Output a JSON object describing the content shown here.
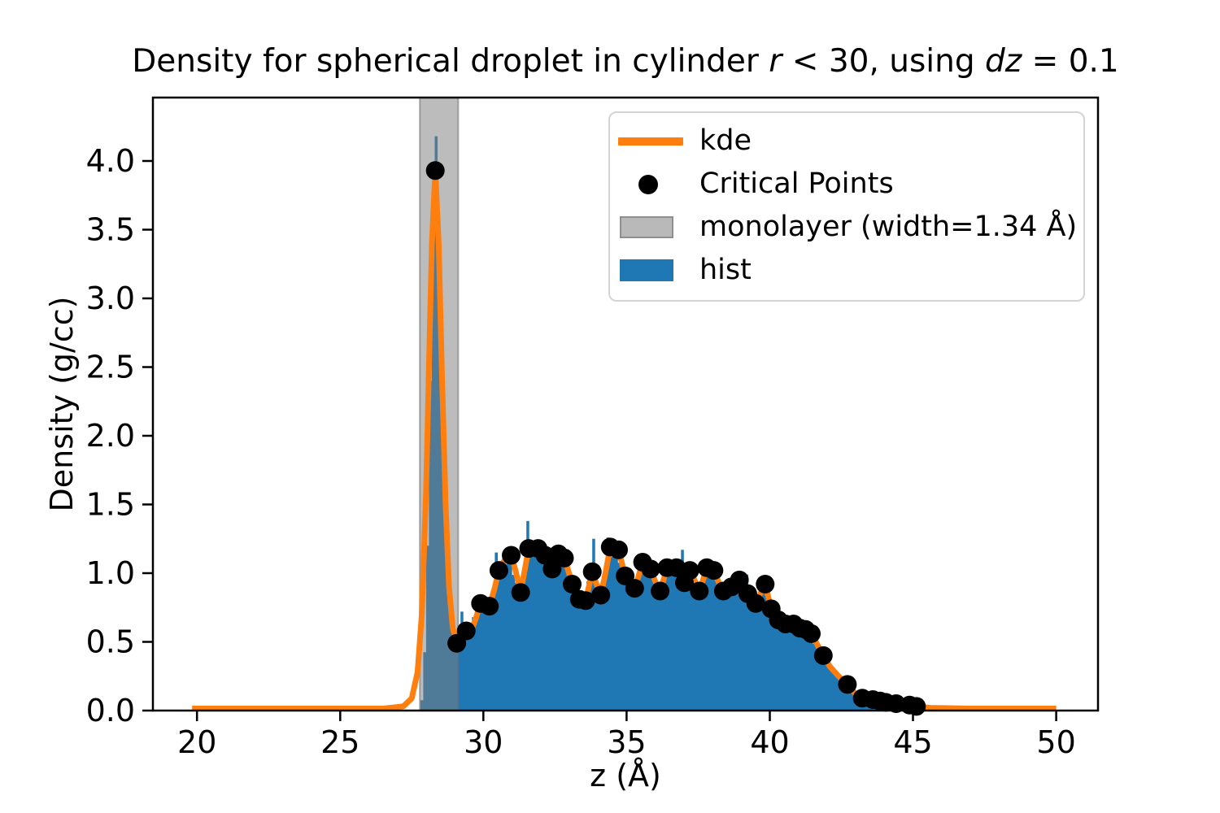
{
  "figure": {
    "title_segments": [
      {
        "text": "Density for spherical droplet in cylinder ",
        "italic": false
      },
      {
        "text": "r",
        "italic": true
      },
      {
        "text": " < 30, using ",
        "italic": false
      },
      {
        "text": "dz",
        "italic": true
      },
      {
        "text": " = 0.1",
        "italic": false
      }
    ]
  },
  "chart_data": {
    "type": "composite",
    "title": "Density for spherical droplet in cylinder r < 30, using dz = 0.1",
    "xlabel": "z (Å)",
    "ylabel": "Density (g/cc)",
    "xlim": [
      18.46,
      51.46
    ],
    "ylim": [
      0,
      4.4615
    ],
    "grid": false,
    "x_ticks": [
      20,
      25,
      30,
      35,
      40,
      45,
      50
    ],
    "x_tick_labels": [
      "20",
      "25",
      "30",
      "35",
      "40",
      "45",
      "50"
    ],
    "y_ticks": [
      0.0,
      0.5,
      1.0,
      1.5,
      2.0,
      2.5,
      3.0,
      3.5,
      4.0
    ],
    "y_tick_labels": [
      "0.0",
      "0.5",
      "1.0",
      "1.5",
      "2.0",
      "2.5",
      "3.0",
      "3.5",
      "4.0"
    ],
    "legend": {
      "position": "upper right",
      "items": [
        {
          "id": "kde",
          "label": "kde",
          "swatch": "line",
          "color": "#ff7f0e"
        },
        {
          "id": "critical-points",
          "label": "Critical Points",
          "swatch": "marker",
          "color": "#000000"
        },
        {
          "id": "monolayer",
          "label": "monolayer (width=1.34 Å)",
          "swatch": "patch",
          "color": "#b9b9b9",
          "edge_color": "#8f8f8f"
        },
        {
          "id": "hist",
          "label": "hist",
          "swatch": "patch",
          "color": "#1f77b4",
          "edge_color": "#1f77b4"
        }
      ]
    },
    "series": {
      "monolayer": {
        "type": "vspan",
        "x_range": [
          27.78,
          29.12
        ],
        "width_angstrom": 1.34,
        "color": "#7f7f7f",
        "alpha": 0.52,
        "edge_color": "#6e6e6e"
      },
      "kde": {
        "type": "line",
        "color": "#ff7f0e",
        "line_width": 7,
        "points": [
          [
            19.83,
            0.015
          ],
          [
            26.5,
            0.015
          ],
          [
            27.2,
            0.03
          ],
          [
            27.5,
            0.09
          ],
          [
            27.7,
            0.28
          ],
          [
            27.85,
            0.7
          ],
          [
            28.0,
            1.6
          ],
          [
            28.1,
            2.5
          ],
          [
            28.2,
            3.4
          ],
          [
            28.32,
            3.93
          ],
          [
            28.44,
            3.4
          ],
          [
            28.56,
            2.4
          ],
          [
            28.68,
            1.5
          ],
          [
            28.8,
            0.9
          ],
          [
            28.93,
            0.6
          ],
          [
            29.07,
            0.49
          ],
          [
            29.25,
            0.55
          ],
          [
            29.4,
            0.58
          ],
          [
            29.55,
            0.57
          ],
          [
            29.72,
            0.66
          ],
          [
            29.9,
            0.78
          ],
          [
            30.06,
            0.77
          ],
          [
            30.21,
            0.76
          ],
          [
            30.38,
            0.88
          ],
          [
            30.54,
            1.02
          ],
          [
            30.75,
            1.1
          ],
          [
            30.97,
            1.13
          ],
          [
            31.12,
            1.02
          ],
          [
            31.3,
            0.86
          ],
          [
            31.44,
            1.02
          ],
          [
            31.58,
            1.18
          ],
          [
            31.75,
            1.19
          ],
          [
            31.91,
            1.18
          ],
          [
            32.03,
            1.16
          ],
          [
            32.15,
            1.13
          ],
          [
            32.28,
            1.07
          ],
          [
            32.4,
            1.03
          ],
          [
            32.51,
            1.09
          ],
          [
            32.62,
            1.14
          ],
          [
            32.73,
            1.13
          ],
          [
            32.83,
            1.11
          ],
          [
            32.96,
            1.02
          ],
          [
            33.1,
            0.92
          ],
          [
            33.22,
            0.85
          ],
          [
            33.35,
            0.81
          ],
          [
            33.46,
            0.8
          ],
          [
            33.57,
            0.8
          ],
          [
            33.68,
            0.9
          ],
          [
            33.8,
            1.01
          ],
          [
            33.95,
            0.92
          ],
          [
            34.1,
            0.84
          ],
          [
            34.26,
            1.0
          ],
          [
            34.43,
            1.19
          ],
          [
            34.58,
            1.19
          ],
          [
            34.72,
            1.17
          ],
          [
            34.84,
            1.07
          ],
          [
            34.95,
            0.98
          ],
          [
            35.1,
            0.92
          ],
          [
            35.28,
            0.89
          ],
          [
            35.42,
            0.98
          ],
          [
            35.56,
            1.08
          ],
          [
            35.7,
            1.06
          ],
          [
            35.84,
            1.03
          ],
          [
            36.0,
            0.94
          ],
          [
            36.17,
            0.87
          ],
          [
            36.29,
            0.95
          ],
          [
            36.41,
            1.04
          ],
          [
            36.57,
            1.05
          ],
          [
            36.74,
            1.04
          ],
          [
            36.88,
            0.98
          ],
          [
            37.02,
            0.93
          ],
          [
            37.12,
            0.98
          ],
          [
            37.21,
            1.02
          ],
          [
            37.37,
            0.95
          ],
          [
            37.54,
            0.87
          ],
          [
            37.67,
            0.95
          ],
          [
            37.8,
            1.04
          ],
          [
            37.92,
            1.03
          ],
          [
            38.05,
            1.02
          ],
          [
            38.2,
            0.94
          ],
          [
            38.38,
            0.87
          ],
          [
            38.52,
            0.88
          ],
          [
            38.66,
            0.9
          ],
          [
            38.8,
            0.92
          ],
          [
            38.94,
            0.95
          ],
          [
            39.08,
            0.9
          ],
          [
            39.23,
            0.85
          ],
          [
            39.37,
            0.81
          ],
          [
            39.51,
            0.78
          ],
          [
            39.67,
            0.85
          ],
          [
            39.84,
            0.92
          ],
          [
            40.05,
            0.74
          ],
          [
            40.3,
            0.66
          ],
          [
            40.55,
            0.63
          ],
          [
            40.7,
            0.64
          ],
          [
            40.83,
            0.63
          ],
          [
            41.05,
            0.6
          ],
          [
            41.25,
            0.59
          ],
          [
            41.45,
            0.56
          ],
          [
            41.66,
            0.48
          ],
          [
            41.87,
            0.4
          ],
          [
            42.1,
            0.32
          ],
          [
            42.4,
            0.25
          ],
          [
            42.71,
            0.19
          ],
          [
            43.0,
            0.12
          ],
          [
            43.23,
            0.09
          ],
          [
            43.6,
            0.08
          ],
          [
            43.85,
            0.07
          ],
          [
            44.05,
            0.06
          ],
          [
            44.41,
            0.05
          ],
          [
            44.88,
            0.04
          ],
          [
            45.12,
            0.03
          ],
          [
            45.6,
            0.02
          ],
          [
            47.0,
            0.015
          ],
          [
            50.0,
            0.015
          ]
        ]
      },
      "critical_points": {
        "type": "scatter",
        "color": "#000000",
        "marker": "circle",
        "radius_px": 11.5,
        "points": [
          [
            28.32,
            3.93
          ],
          [
            29.07,
            0.49
          ],
          [
            29.4,
            0.58
          ],
          [
            29.9,
            0.78
          ],
          [
            30.21,
            0.76
          ],
          [
            30.54,
            1.02
          ],
          [
            30.97,
            1.13
          ],
          [
            31.3,
            0.86
          ],
          [
            31.58,
            1.18
          ],
          [
            31.91,
            1.18
          ],
          [
            32.15,
            1.13
          ],
          [
            32.4,
            1.03
          ],
          [
            32.62,
            1.14
          ],
          [
            32.83,
            1.11
          ],
          [
            33.1,
            0.92
          ],
          [
            33.35,
            0.81
          ],
          [
            33.57,
            0.8
          ],
          [
            33.8,
            1.01
          ],
          [
            34.1,
            0.84
          ],
          [
            34.43,
            1.19
          ],
          [
            34.72,
            1.17
          ],
          [
            34.95,
            0.98
          ],
          [
            35.28,
            0.89
          ],
          [
            35.56,
            1.08
          ],
          [
            35.84,
            1.03
          ],
          [
            36.17,
            0.87
          ],
          [
            36.41,
            1.04
          ],
          [
            36.74,
            1.04
          ],
          [
            37.02,
            0.93
          ],
          [
            37.21,
            1.02
          ],
          [
            37.54,
            0.87
          ],
          [
            37.8,
            1.04
          ],
          [
            38.05,
            1.02
          ],
          [
            38.38,
            0.87
          ],
          [
            38.66,
            0.9
          ],
          [
            38.94,
            0.95
          ],
          [
            39.23,
            0.85
          ],
          [
            39.51,
            0.78
          ],
          [
            39.84,
            0.92
          ],
          [
            40.05,
            0.74
          ],
          [
            40.3,
            0.66
          ],
          [
            40.55,
            0.63
          ],
          [
            40.83,
            0.63
          ],
          [
            41.05,
            0.6
          ],
          [
            41.25,
            0.59
          ],
          [
            41.45,
            0.56
          ],
          [
            41.87,
            0.4
          ],
          [
            42.71,
            0.19
          ],
          [
            43.23,
            0.09
          ],
          [
            43.6,
            0.08
          ],
          [
            43.85,
            0.07
          ],
          [
            44.05,
            0.06
          ],
          [
            44.41,
            0.05
          ],
          [
            44.88,
            0.04
          ],
          [
            45.12,
            0.03
          ]
        ]
      },
      "hist": {
        "type": "bar",
        "color": "#1f77b4",
        "bin_width": 0.1,
        "x_range": [
          27.8,
          45.4
        ],
        "envelope": [
          [
            27.8,
            0.0
          ],
          [
            27.9,
            0.15
          ],
          [
            28.0,
            0.7
          ],
          [
            28.1,
            1.7
          ],
          [
            28.2,
            3.1
          ],
          [
            28.3,
            4.11
          ],
          [
            28.4,
            4.25
          ],
          [
            28.45,
            3.4
          ],
          [
            28.55,
            2.3
          ],
          [
            28.65,
            1.45
          ],
          [
            28.75,
            1.0
          ],
          [
            28.85,
            0.72
          ],
          [
            29.0,
            0.55
          ],
          [
            29.1,
            0.5
          ],
          [
            29.3,
            0.56
          ],
          [
            29.5,
            0.62
          ],
          [
            29.7,
            0.7
          ],
          [
            29.9,
            0.78
          ],
          [
            30.1,
            0.74
          ],
          [
            30.3,
            0.8
          ],
          [
            30.5,
            0.97
          ],
          [
            30.7,
            1.05
          ],
          [
            30.9,
            1.1
          ],
          [
            31.1,
            0.95
          ],
          [
            31.3,
            0.87
          ],
          [
            31.5,
            1.1
          ],
          [
            31.7,
            1.15
          ],
          [
            31.9,
            1.15
          ],
          [
            32.1,
            1.1
          ],
          [
            32.3,
            1.05
          ],
          [
            32.5,
            1.1
          ],
          [
            32.7,
            1.12
          ],
          [
            32.9,
            1.06
          ],
          [
            33.1,
            0.9
          ],
          [
            33.3,
            0.8
          ],
          [
            33.5,
            0.82
          ],
          [
            33.7,
            0.98
          ],
          [
            33.9,
            0.9
          ],
          [
            34.1,
            0.86
          ],
          [
            34.3,
            1.08
          ],
          [
            34.5,
            1.13
          ],
          [
            34.7,
            1.1
          ],
          [
            34.9,
            1.0
          ],
          [
            35.1,
            0.92
          ],
          [
            35.3,
            0.9
          ],
          [
            35.5,
            1.03
          ],
          [
            35.7,
            1.06
          ],
          [
            35.9,
            1.0
          ],
          [
            36.1,
            0.9
          ],
          [
            36.3,
            0.98
          ],
          [
            36.5,
            1.03
          ],
          [
            36.7,
            1.01
          ],
          [
            36.9,
            0.96
          ],
          [
            37.1,
            1.0
          ],
          [
            37.3,
            0.96
          ],
          [
            37.5,
            0.88
          ],
          [
            37.7,
            1.0
          ],
          [
            37.9,
            1.01
          ],
          [
            38.1,
            0.98
          ],
          [
            38.3,
            0.88
          ],
          [
            38.5,
            0.88
          ],
          [
            38.7,
            0.9
          ],
          [
            38.9,
            0.94
          ],
          [
            39.1,
            0.88
          ],
          [
            39.3,
            0.84
          ],
          [
            39.5,
            0.78
          ],
          [
            39.7,
            0.84
          ],
          [
            39.9,
            0.88
          ],
          [
            40.1,
            0.72
          ],
          [
            40.3,
            0.66
          ],
          [
            40.5,
            0.63
          ],
          [
            40.7,
            0.62
          ],
          [
            40.9,
            0.6
          ],
          [
            41.1,
            0.6
          ],
          [
            41.3,
            0.57
          ],
          [
            41.5,
            0.5
          ],
          [
            41.7,
            0.45
          ],
          [
            41.9,
            0.4
          ],
          [
            42.1,
            0.33
          ],
          [
            42.3,
            0.27
          ],
          [
            42.5,
            0.22
          ],
          [
            42.7,
            0.19
          ],
          [
            42.9,
            0.14
          ],
          [
            43.1,
            0.1
          ],
          [
            43.3,
            0.08
          ],
          [
            43.5,
            0.06
          ],
          [
            43.7,
            0.03
          ],
          [
            43.9,
            0.02
          ],
          [
            44.2,
            0.015
          ],
          [
            44.6,
            0.01
          ],
          [
            45.0,
            0.008
          ],
          [
            45.4,
            0.0
          ]
        ],
        "spikes": [
          [
            29.25,
            0.72
          ],
          [
            30.45,
            1.15
          ],
          [
            30.95,
            1.17
          ],
          [
            31.55,
            1.38
          ],
          [
            32.35,
            1.18
          ],
          [
            33.85,
            1.25
          ],
          [
            34.35,
            1.26
          ],
          [
            36.95,
            1.17
          ],
          [
            37.8,
            1.1
          ],
          [
            39.2,
            0.99
          ]
        ]
      }
    }
  }
}
